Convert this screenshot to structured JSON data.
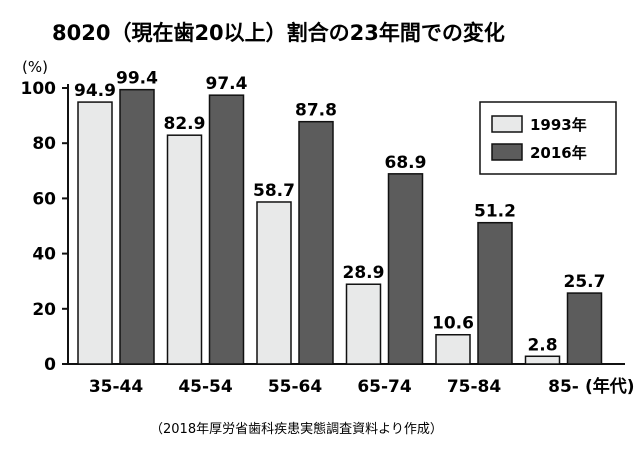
{
  "chart_data": {
    "type": "bar",
    "title": "8020（現在歯20以上）割合の23年間での変化",
    "ylabel": "(%)",
    "xlabel": "(年代)",
    "ylim": [
      0,
      100
    ],
    "yticks": [
      0,
      20,
      40,
      60,
      80,
      100
    ],
    "categories": [
      "35-44",
      "45-54",
      "55-64",
      "65-74",
      "75-84",
      "85-"
    ],
    "series": [
      {
        "name": "1993年",
        "values": [
          94.9,
          82.9,
          58.7,
          28.9,
          10.6,
          2.8
        ],
        "color": "#e8e9e9"
      },
      {
        "name": "2016年",
        "values": [
          99.4,
          97.4,
          87.8,
          68.9,
          51.2,
          25.7
        ],
        "color": "#5c5c5c"
      }
    ],
    "labels": [
      [
        "94.9",
        "82.9",
        "58.7",
        "28.9",
        "10.6",
        "2.8"
      ],
      [
        "99.4",
        "97.4",
        "87.8",
        "68.9",
        "51.2",
        "25.7"
      ]
    ],
    "legend_position": "top-right",
    "grid": false
  },
  "source_note": "（2018年厚労省歯科疾患実態調査資料より作成）"
}
